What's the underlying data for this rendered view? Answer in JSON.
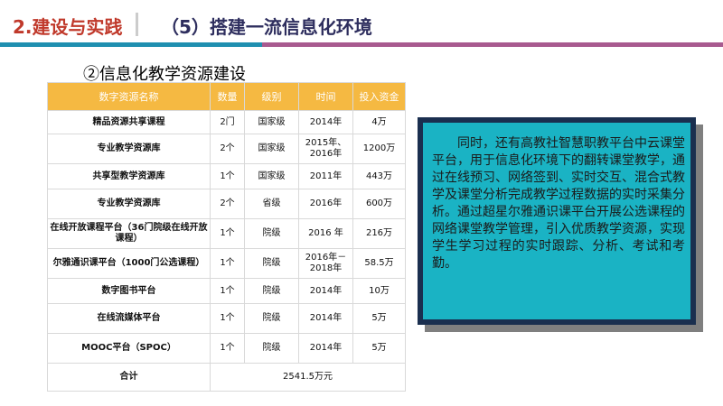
{
  "header": {
    "section_tag": "2.建设与实践",
    "title": "（5）搭建一流信息化环境",
    "colors": {
      "tag": "#c0392b",
      "title": "#2e2e5e",
      "line_left": "#1f8fb0",
      "line_right": "#a85a8f"
    }
  },
  "subtitle": "②信息化教学资源建设",
  "table": {
    "header_color": "#f5b942",
    "columns": [
      "数字资源名称",
      "数量",
      "级别",
      "时间",
      "投入资金"
    ],
    "rows": [
      {
        "name": "精品资源共享课程",
        "qty": "2门",
        "level": "国家级",
        "time": "2014年",
        "fund": "4万"
      },
      {
        "name": "专业教学资源库",
        "qty": "2个",
        "level": "国家级",
        "time": "2015年、2016年",
        "fund": "1200万"
      },
      {
        "name": "共享型教学资源库",
        "qty": "1个",
        "level": "国家级",
        "time": "2011年",
        "fund": "443万"
      },
      {
        "name": "专业教学资源库",
        "qty": "2个",
        "level": "省级",
        "time": "2016年",
        "fund": "600万"
      },
      {
        "name": "在线开放课程平台（36门院级在线开放课程）",
        "qty": "1个",
        "level": "院级",
        "time": "2016 年",
        "fund": "216万"
      },
      {
        "name": "尔雅通识课平台（1000门公选课程）",
        "qty": "1个",
        "level": "院级",
        "time": "2016年－2018年",
        "fund": "58.5万"
      },
      {
        "name": "数字图书平台",
        "qty": "1个",
        "level": "院级",
        "time": "2014年",
        "fund": "10万"
      },
      {
        "name": "在线流媒体平台",
        "qty": "1个",
        "level": "院级",
        "time": "2014年",
        "fund": "5万"
      },
      {
        "name": "MOOC平台（SPOC）",
        "qty": "1个",
        "level": "院级",
        "time": "2014年",
        "fund": "5万"
      }
    ],
    "total_label": "合计",
    "total_value": "2541.5万元"
  },
  "textbox": {
    "bg_color": "#1ab3c4",
    "text": "同时，还有高教社智慧职教平台中云课堂平台，用于信息化环境下的翻转课堂教学，通过在线预习、网络签到、实时交互、混合式教学及课堂分析完成教学过程数据的实时采集分析。通过超星尔雅通识课平台开展公选课程的网络课堂教学管理，引入优质教学资源，实现学生学习过程的实时跟踪、分析、考试和考勤。"
  }
}
